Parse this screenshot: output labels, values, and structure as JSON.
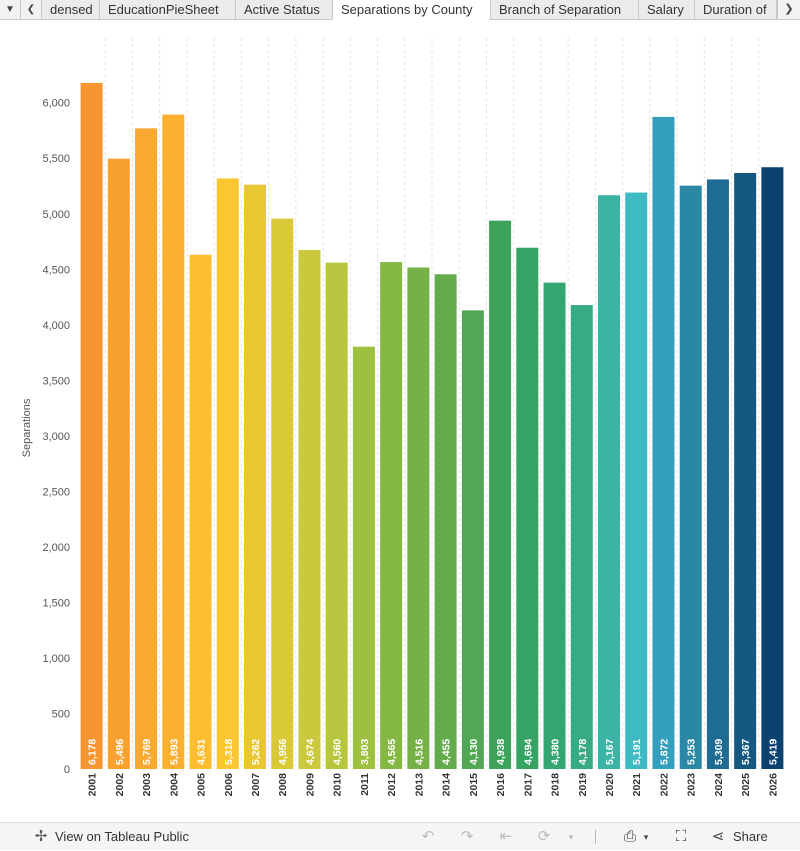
{
  "tabs": {
    "items": [
      "densed",
      "EducationPieSheet",
      "Active Status",
      "Separations by County",
      "Branch of Separation",
      "Salary",
      "Duration of"
    ],
    "active_index": 3
  },
  "toolbar": {
    "view_label": "View on Tableau Public",
    "share_label": "Share",
    "icons": [
      "tableau-logo-icon",
      "undo-icon",
      "redo-icon",
      "revert-icon",
      "refresh-icon",
      "download-icon",
      "fullscreen-icon",
      "share-icon"
    ]
  },
  "chart_data": {
    "type": "bar",
    "ylabel": "Separations",
    "xlabel": "",
    "ylim": [
      0,
      6500
    ],
    "yticks": [
      0,
      500,
      1000,
      1500,
      2000,
      2500,
      3000,
      3500,
      4000,
      4500,
      5000,
      5500,
      6000
    ],
    "ytick_labels": [
      "0",
      "500",
      "1,000",
      "1,500",
      "2,000",
      "2,500",
      "3,000",
      "3,500",
      "4,000",
      "4,500",
      "5,000",
      "5,500",
      "6,000"
    ],
    "categories": [
      "2001",
      "2002",
      "2003",
      "2004",
      "2005",
      "2006",
      "2007",
      "2008",
      "2009",
      "2010",
      "2011",
      "2012",
      "2013",
      "2014",
      "2015",
      "2016",
      "2017",
      "2018",
      "2019",
      "2020",
      "2021",
      "2022",
      "2023",
      "2024",
      "2025",
      "2026"
    ],
    "values": [
      6178,
      5496,
      5769,
      5893,
      4631,
      5318,
      5262,
      4956,
      4674,
      4560,
      3803,
      4565,
      4516,
      4455,
      4130,
      4938,
      4694,
      4380,
      4178,
      5167,
      5191,
      5872,
      5253,
      5309,
      5367,
      5419
    ],
    "value_labels": [
      "6,178",
      "5,496",
      "5,769",
      "5,893",
      "4,631",
      "5,318",
      "5,262",
      "4,956",
      "4,674",
      "4,560",
      "3,803",
      "4,565",
      "4,516",
      "4,455",
      "4,130",
      "4,938",
      "4,694",
      "4,380",
      "4,178",
      "5,167",
      "5,191",
      "5,872",
      "5,253",
      "5,309",
      "5,367",
      "5,419"
    ],
    "colors": [
      "#f69630",
      "#f8a030",
      "#f9a831",
      "#fbb030",
      "#fdbd30",
      "#fcc630",
      "#e9c733",
      "#d9c939",
      "#cac83c",
      "#b8c63f",
      "#9dc13f",
      "#85b842",
      "#75b146",
      "#64ab4d",
      "#52a754",
      "#3ea35a",
      "#36a263",
      "#34a770",
      "#38ab82",
      "#3bb3a5",
      "#3ebac4",
      "#339fbd",
      "#2a87a6",
      "#1f6c93",
      "#15587f",
      "#0b4270"
    ],
    "grid": "vertical dashed separators",
    "legend": "none"
  }
}
